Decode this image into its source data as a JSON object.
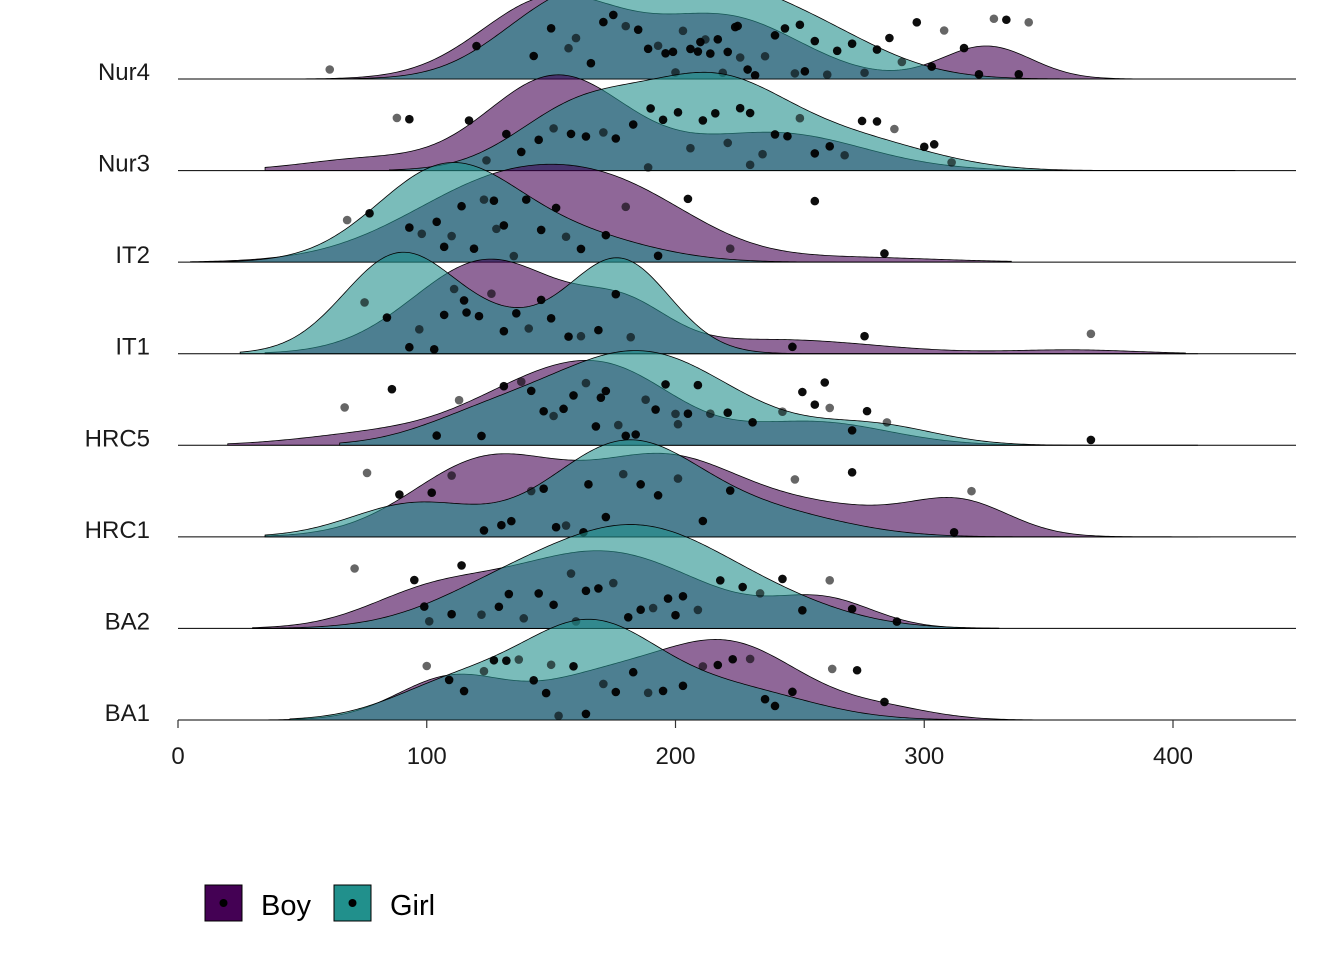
{
  "chart_data": {
    "type": "ridgeline",
    "title": "",
    "xlabel": "",
    "ylabel": "",
    "xlim": [
      0,
      450
    ],
    "x_ticks": [
      0,
      100,
      200,
      300,
      400
    ],
    "categories": [
      "Nur4",
      "Nur3",
      "IT2",
      "IT1",
      "HRC5",
      "HRC1",
      "BA2",
      "BA1"
    ],
    "legend": {
      "position": "bottom-left",
      "items": [
        "Boy",
        "Girl"
      ]
    },
    "colors": {
      "Boy": "#440154",
      "Girl": "#21908C",
      "points": "#000000"
    },
    "series": [
      {
        "name": "Boy",
        "ridges": {
          "Nur4": {
            "range": [
              20,
              400
            ],
            "peaks": [
              [
                150,
                0.85,
                28
              ],
              [
                220,
                0.65,
                30
              ],
              [
                325,
                0.35,
                18
              ]
            ]
          },
          "Nur3": {
            "range": [
              35,
              425
            ],
            "peaks": [
              [
                152,
                1.0,
                28
              ],
              [
                240,
                0.4,
                35
              ],
              [
                75,
                0.12,
                25
              ]
            ]
          },
          "IT2": {
            "range": [
              5,
              335
            ],
            "peaks": [
              [
                135,
                0.9,
                40
              ],
              [
                185,
                0.4,
                30
              ],
              [
                270,
                0.05,
                35
              ]
            ]
          },
          "IT1": {
            "range": [
              35,
              405
            ],
            "peaks": [
              [
                125,
                1.0,
                30
              ],
              [
                180,
                0.4,
                18
              ],
              [
                240,
                0.15,
                40
              ],
              [
                360,
                0.04,
                25
              ]
            ]
          },
          "HRC5": {
            "range": [
              20,
              410
            ],
            "peaks": [
              [
                145,
                0.6,
                30
              ],
              [
                180,
                0.5,
                25
              ],
              [
                255,
                0.25,
                30
              ],
              [
                80,
                0.12,
                30
              ]
            ]
          },
          "HRC1": {
            "range": [
              35,
              415
            ],
            "peaks": [
              [
                125,
                0.82,
                30
              ],
              [
                195,
                0.78,
                30
              ],
              [
                260,
                0.3,
                35
              ],
              [
                315,
                0.32,
                20
              ]
            ]
          },
          "BA2": {
            "range": [
              30,
              330
            ],
            "peaks": [
              [
                100,
                0.3,
                25
              ],
              [
                170,
                0.82,
                40
              ],
              [
                260,
                0.28,
                20
              ]
            ]
          },
          "BA1": {
            "range": [
              20,
              350
            ],
            "peaks": [
              [
                110,
                0.45,
                22
              ],
              [
                165,
                0.35,
                25
              ],
              [
                220,
                0.82,
                30
              ],
              [
                285,
                0.1,
                20
              ]
            ]
          }
        }
      },
      {
        "name": "Girl",
        "ridges": {
          "Nur4": {
            "range": [
              30,
              410
            ],
            "peaks": [
              [
                200,
                1.0,
                35
              ],
              [
                150,
                0.5,
                25
              ],
              [
                255,
                0.4,
                30
              ]
            ]
          },
          "Nur3": {
            "range": [
              85,
              425
            ],
            "peaks": [
              [
                160,
                0.6,
                25
              ],
              [
                215,
                0.95,
                30
              ],
              [
                275,
                0.28,
                30
              ]
            ]
          },
          "IT2": {
            "range": [
              10,
              335
            ],
            "peaks": [
              [
                108,
                1.0,
                28
              ],
              [
                160,
                0.25,
                30
              ]
            ]
          },
          "IT1": {
            "range": [
              25,
              410
            ],
            "peaks": [
              [
                88,
                1.0,
                22
              ],
              [
                178,
                0.97,
                20
              ],
              [
                130,
                0.3,
                25
              ]
            ]
          },
          "HRC5": {
            "range": [
              65,
              410
            ],
            "peaks": [
              [
                185,
                1.0,
                38
              ],
              [
                280,
                0.2,
                25
              ],
              [
                120,
                0.2,
                25
              ]
            ]
          },
          "HRC1": {
            "range": [
              35,
              410
            ],
            "peaks": [
              [
                180,
                1.0,
                30
              ],
              [
                95,
                0.35,
                25
              ],
              [
                240,
                0.22,
                30
              ]
            ]
          },
          "BA2": {
            "range": [
              30,
              330
            ],
            "peaks": [
              [
                185,
                1.0,
                35
              ],
              [
                130,
                0.35,
                30
              ],
              [
                240,
                0.2,
                30
              ]
            ]
          },
          "BA1": {
            "range": [
              45,
              355
            ],
            "peaks": [
              [
                165,
                1.0,
                28
              ],
              [
                110,
                0.35,
                25
              ],
              [
                225,
                0.3,
                30
              ]
            ]
          }
        }
      }
    ],
    "points": {
      "Nur4": [
        61,
        120,
        143,
        157,
        166,
        171,
        180,
        185,
        189,
        193,
        196,
        199,
        203,
        206,
        209,
        212,
        214,
        217,
        219,
        221,
        224,
        226,
        229,
        232,
        236,
        240,
        244,
        248,
        252,
        256,
        261,
        265,
        271,
        276,
        281,
        286,
        291,
        297,
        303,
        308,
        316,
        322,
        328,
        333,
        338,
        342,
        150,
        175,
        200,
        225,
        250,
        160,
        210
      ],
      "Nur3": [
        88,
        93,
        117,
        124,
        132,
        145,
        151,
        158,
        164,
        171,
        176,
        183,
        189,
        195,
        201,
        206,
        211,
        216,
        221,
        226,
        230,
        235,
        240,
        245,
        250,
        256,
        262,
        268,
        275,
        281,
        288,
        300,
        304,
        311,
        138,
        190,
        230
      ],
      "IT2": [
        68,
        77,
        93,
        98,
        104,
        107,
        110,
        114,
        119,
        123,
        127,
        131,
        135,
        140,
        146,
        156,
        162,
        172,
        180,
        193,
        205,
        222,
        256,
        284,
        128,
        152
      ],
      "IT1": [
        75,
        84,
        93,
        97,
        103,
        107,
        111,
        116,
        121,
        126,
        131,
        136,
        141,
        146,
        157,
        162,
        169,
        176,
        182,
        247,
        276,
        367,
        115,
        150
      ],
      "HRC5": [
        67,
        86,
        104,
        113,
        122,
        131,
        138,
        142,
        147,
        151,
        155,
        159,
        164,
        168,
        172,
        177,
        180,
        184,
        188,
        192,
        196,
        201,
        205,
        209,
        214,
        221,
        231,
        243,
        251,
        256,
        262,
        271,
        277,
        285,
        367,
        170,
        200,
        260
      ],
      "HRC1": [
        76,
        89,
        102,
        110,
        123,
        134,
        142,
        147,
        152,
        156,
        163,
        172,
        179,
        186,
        193,
        201,
        211,
        222,
        248,
        271,
        312,
        319,
        130,
        165
      ],
      "BA2": [
        71,
        95,
        99,
        101,
        110,
        114,
        122,
        129,
        133,
        139,
        145,
        151,
        158,
        164,
        169,
        175,
        181,
        186,
        191,
        197,
        203,
        209,
        218,
        227,
        234,
        243,
        251,
        262,
        271,
        289,
        160,
        200
      ],
      "BA1": [
        100,
        109,
        115,
        123,
        127,
        132,
        137,
        143,
        148,
        153,
        159,
        164,
        171,
        176,
        183,
        189,
        195,
        203,
        211,
        217,
        223,
        230,
        236,
        247,
        263,
        273,
        284,
        150,
        240
      ]
    }
  },
  "legend": {
    "items": [
      {
        "label": "Boy",
        "color": "#440154"
      },
      {
        "label": "Girl",
        "color": "#21908C"
      }
    ]
  }
}
